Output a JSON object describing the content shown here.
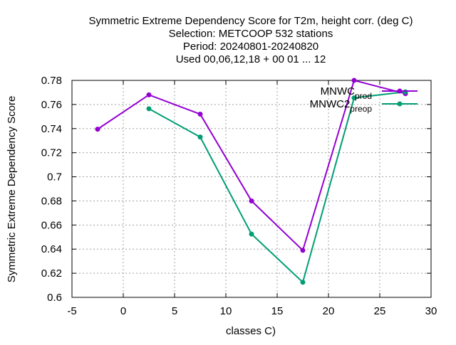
{
  "chart_data": {
    "type": "line",
    "title_lines": [
      "Symmetric Extreme Dependency Score  for T2m, height corr. (deg C)",
      "Selection: METCOOP    532 stations",
      "Period: 20240801-20240820",
      "Used  00,06,12,18 + 00 01 ... 12"
    ],
    "xlabel": "classes C)",
    "ylabel": "Symmetric Extreme Dependency Score",
    "xlim": [
      -5,
      30
    ],
    "ylim": [
      0.6,
      0.78
    ],
    "xticks": [
      -5,
      0,
      5,
      10,
      15,
      20,
      25,
      30
    ],
    "yticks": [
      0.6,
      0.62,
      0.64,
      0.66,
      0.68,
      0.7,
      0.72,
      0.74,
      0.76,
      0.78
    ],
    "ytick_labels": [
      "0.6",
      "0.62",
      "0.64",
      "0.66",
      "0.68",
      "0.7",
      "0.72",
      "0.74",
      "0.76",
      "0.78"
    ],
    "grid": true,
    "legend_position": "top-right",
    "series": [
      {
        "name": "MNWC_prod",
        "legend_main": "MNWC",
        "legend_sub": "prod",
        "color": "#9400d3",
        "x": [
          -2.5,
          2.5,
          7.5,
          12.5,
          17.5,
          22.5,
          27.5
        ],
        "y": [
          0.7395,
          0.768,
          0.752,
          0.68,
          0.639,
          0.78,
          0.769
        ]
      },
      {
        "name": "MNWC2_preop",
        "legend_main": "MNWC2",
        "legend_sub": "preop",
        "color": "#009e73",
        "x": [
          2.5,
          7.5,
          12.5,
          17.5,
          22.5,
          27.5
        ],
        "y": [
          0.7565,
          0.733,
          0.6525,
          0.6125,
          0.7655,
          0.7705
        ]
      }
    ]
  }
}
